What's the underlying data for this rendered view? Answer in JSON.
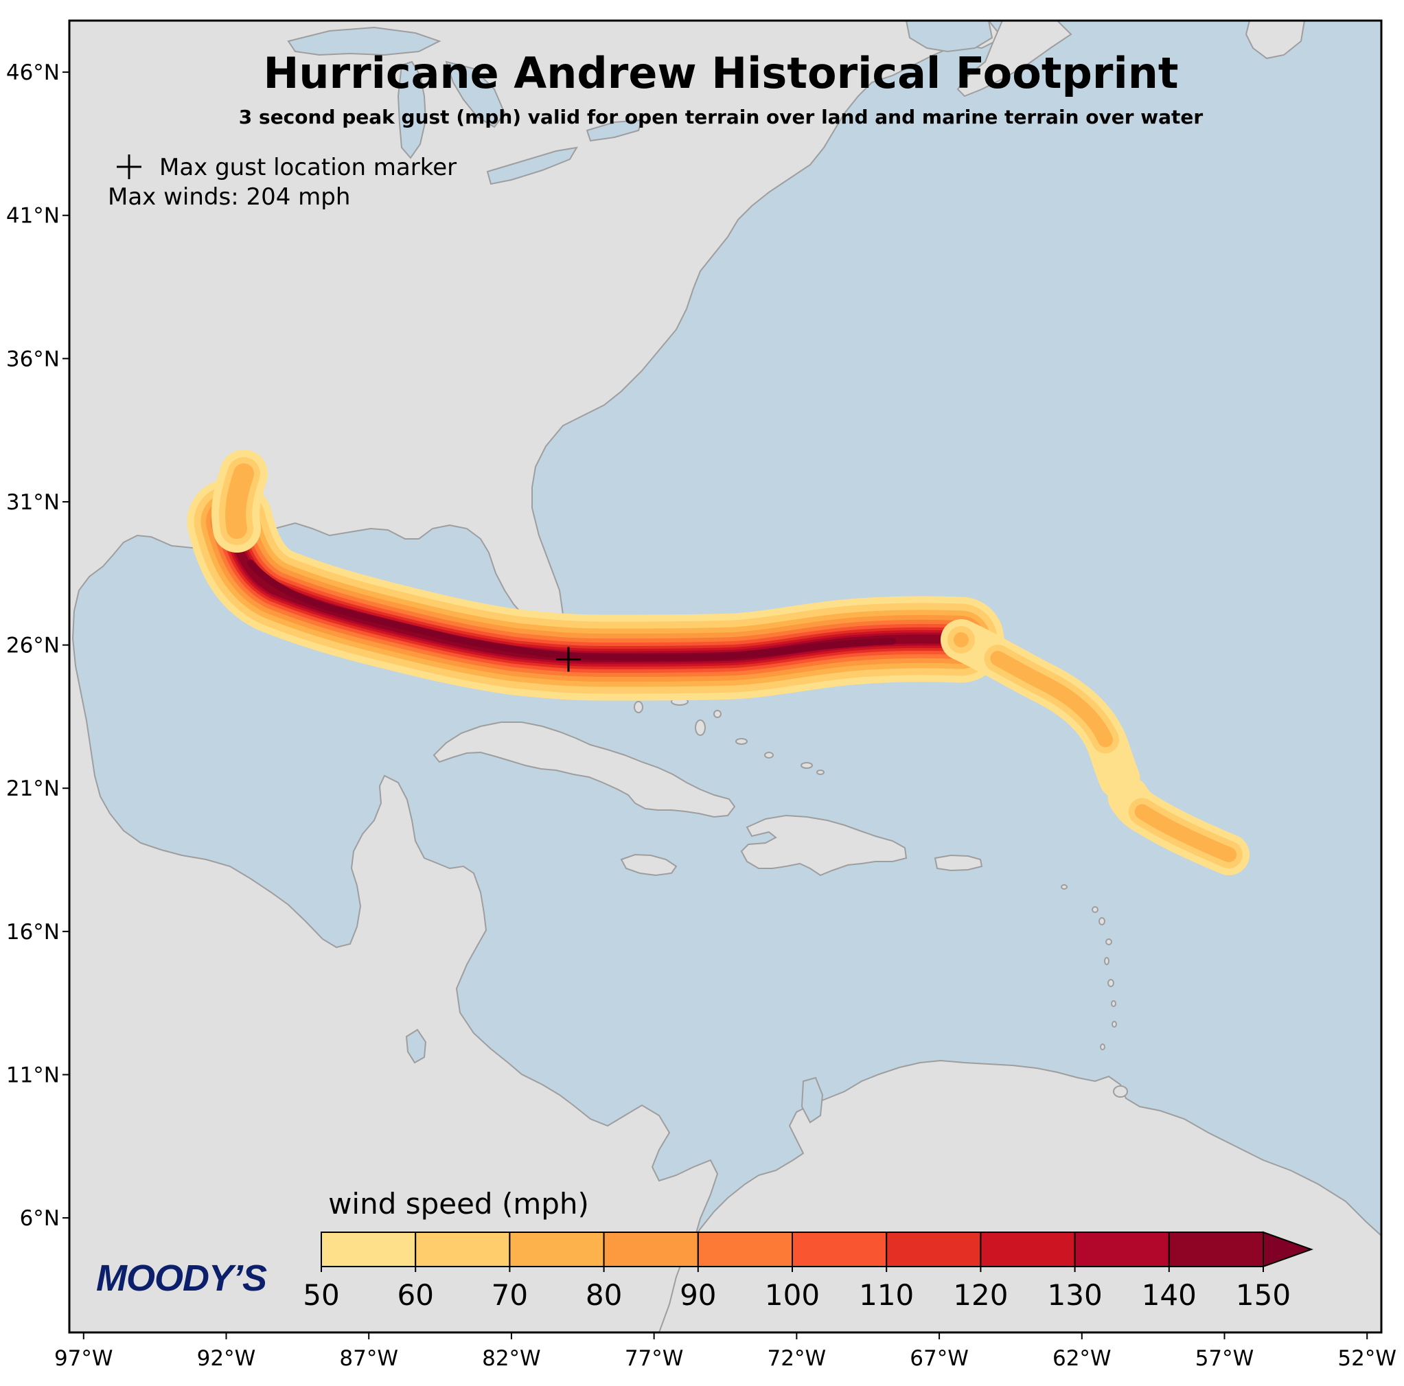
{
  "map": {
    "title": "Hurricane Andrew Historical Footprint",
    "subtitle": "3 second peak gust (mph) valid for open terrain over land and marine terrain over water",
    "legend": {
      "marker_symbol": "+",
      "marker_label": "Max gust location marker",
      "max_winds_text": "Max winds: 204 mph"
    },
    "extent": {
      "lon_min": -97.5,
      "lon_max": -51.5,
      "lat_min": 2.0,
      "lat_max": 47.8
    },
    "max_gust_location": {
      "lon": -80.0,
      "lat": 25.5
    },
    "lat_ticks": [
      {
        "value": 46,
        "label": "46°N"
      },
      {
        "value": 41,
        "label": "41°N"
      },
      {
        "value": 36,
        "label": "36°N"
      },
      {
        "value": 31,
        "label": "31°N"
      },
      {
        "value": 26,
        "label": "26°N"
      },
      {
        "value": 21,
        "label": "21°N"
      },
      {
        "value": 16,
        "label": "16°N"
      },
      {
        "value": 11,
        "label": "11°N"
      },
      {
        "value": 6,
        "label": "6°N"
      }
    ],
    "lon_ticks": [
      {
        "value": -97,
        "label": "97°W"
      },
      {
        "value": -92,
        "label": "92°W"
      },
      {
        "value": -87,
        "label": "87°W"
      },
      {
        "value": -82,
        "label": "82°W"
      },
      {
        "value": -77,
        "label": "77°W"
      },
      {
        "value": -72,
        "label": "72°W"
      },
      {
        "value": -67,
        "label": "67°W"
      },
      {
        "value": -62,
        "label": "62°W"
      },
      {
        "value": -57,
        "label": "57°W"
      },
      {
        "value": -52,
        "label": "52°W"
      }
    ],
    "colors": {
      "ocean": "#c1d4e1",
      "land": "#e0e0e0",
      "coast": "#9e9e9e"
    },
    "logo": "MOODY’S"
  },
  "colorbar": {
    "label": "wind speed (mph)",
    "ticks": [
      "50",
      "60",
      "70",
      "80",
      "90",
      "100",
      "110",
      "120",
      "130",
      "140",
      "150"
    ],
    "colors": [
      "#ffe08a",
      "#ffcd6b",
      "#feb24c",
      "#fd9a40",
      "#fc7a35",
      "#f85530",
      "#e42f25",
      "#cc1422",
      "#b2072a",
      "#8f0324"
    ],
    "extend_color": "#800026"
  }
}
